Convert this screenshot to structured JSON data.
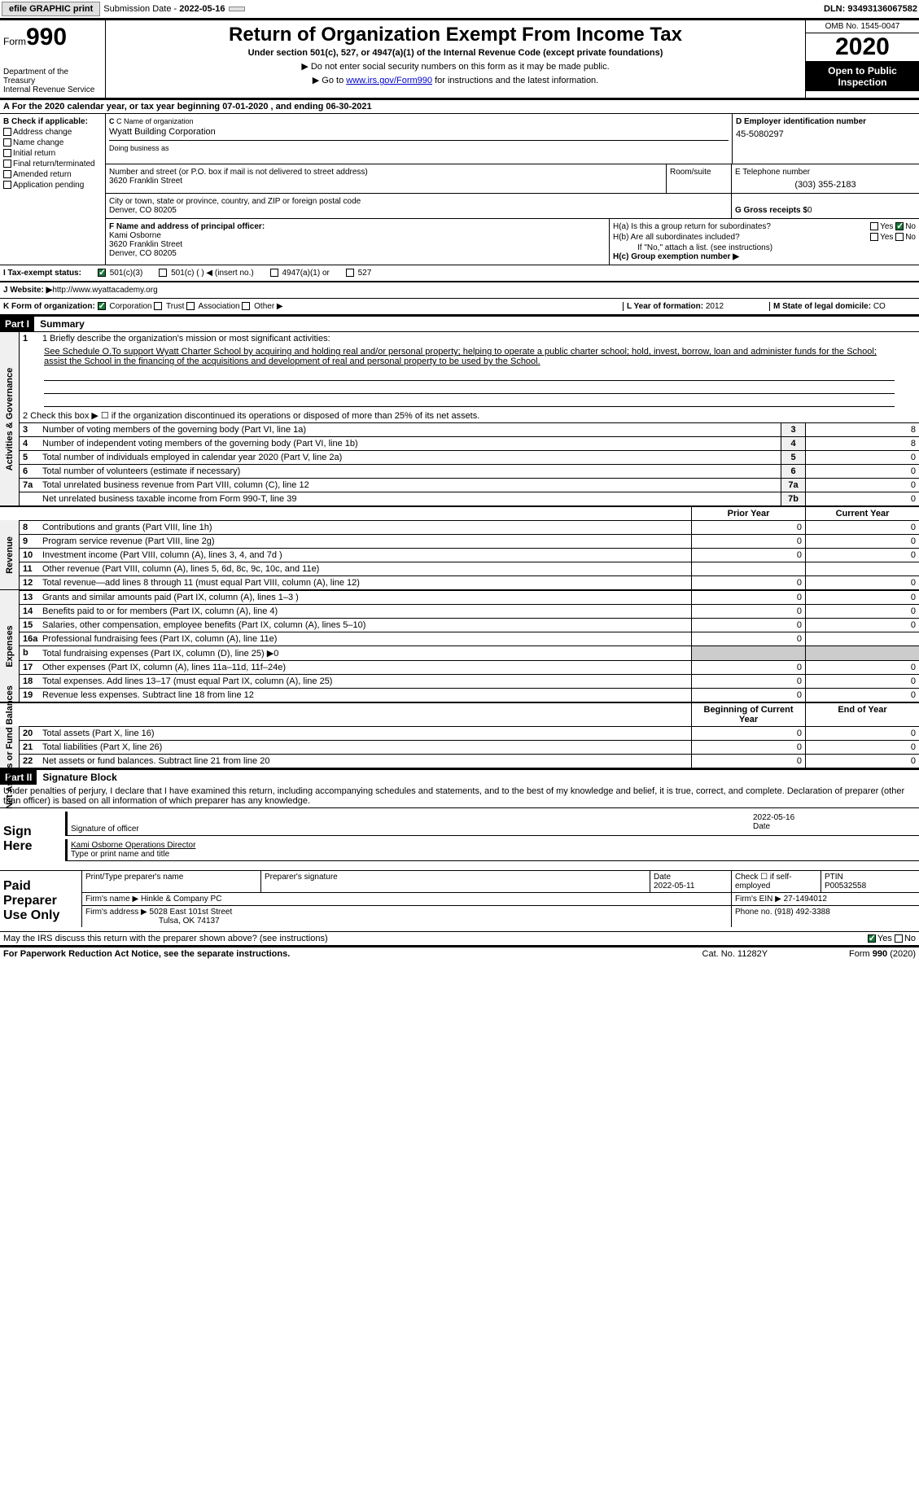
{
  "topbar": {
    "efile": "efile GRAPHIC print",
    "submission_label": "Submission Date - ",
    "submission_date": "2022-05-16",
    "dln_label": "DLN: ",
    "dln": "93493136067582"
  },
  "header": {
    "form_label": "Form",
    "form_num": "990",
    "dept": "Department of the Treasury\nInternal Revenue Service",
    "title": "Return of Organization Exempt From Income Tax",
    "subtitle": "Under section 501(c), 527, or 4947(a)(1) of the Internal Revenue Code (except private foundations)",
    "note1": "▶ Do not enter social security numbers on this form as it may be made public.",
    "note2_pre": "▶ Go to ",
    "note2_link": "www.irs.gov/Form990",
    "note2_post": " for instructions and the latest information.",
    "omb": "OMB No. 1545-0047",
    "year": "2020",
    "open": "Open to Public Inspection"
  },
  "row_a": "A For the 2020 calendar year, or tax year beginning 07-01-2020    , and ending 06-30-2021",
  "col_b": {
    "label": "B Check if applicable:",
    "addr": "Address change",
    "name": "Name change",
    "init": "Initial return",
    "final": "Final return/terminated",
    "amend": "Amended return",
    "app": "Application pending"
  },
  "col_c": {
    "name_label": "C Name of organization",
    "name": "Wyatt Building Corporation",
    "dba_label": "Doing business as",
    "street_label": "Number and street (or P.O. box if mail is not delivered to street address)",
    "street": "3620 Franklin Street",
    "room_label": "Room/suite",
    "city_label": "City or town, state or province, country, and ZIP or foreign postal code",
    "city": "Denver, CO  80205"
  },
  "col_d": {
    "label": "D Employer identification number",
    "val": "45-5080297"
  },
  "col_e": {
    "label": "E Telephone number",
    "val": "(303) 355-2183"
  },
  "col_g": {
    "label": "G Gross receipts $ ",
    "val": "0"
  },
  "col_f": {
    "label": "F  Name and address of principal officer:",
    "name": "Kami Osborne",
    "addr1": "3620 Franklin Street",
    "addr2": "Denver, CO  80205"
  },
  "col_h": {
    "ha": "H(a)  Is this a group return for subordinates?",
    "hb": "H(b)  Are all subordinates included?",
    "hb_note": "If \"No,\" attach a list. (see instructions)",
    "hc": "H(c)  Group exemption number ▶",
    "yes": "Yes",
    "no": "No"
  },
  "row_i": {
    "label": "I   Tax-exempt status:",
    "c3": "501(c)(3)",
    "c": "501(c) (  ) ◀ (insert no.)",
    "a1": "4947(a)(1) or",
    "s527": "527"
  },
  "row_j": {
    "label": "J   Website: ▶ ",
    "val": "http://www.wyattacademy.org"
  },
  "row_k": {
    "label": "K Form of organization:",
    "corp": "Corporation",
    "trust": "Trust",
    "assoc": "Association",
    "other": "Other ▶",
    "l_label": "L Year of formation: ",
    "l_val": "2012",
    "m_label": "M State of legal domicile: ",
    "m_val": "CO"
  },
  "part1": {
    "hdr": "Part I",
    "title": "Summary",
    "vtabs": [
      "Activities & Governance",
      "Revenue",
      "Expenses",
      "Net Assets or Fund Balances"
    ],
    "line1_label": "1  Briefly describe the organization's mission or most significant activities:",
    "line1_text": "See Schedule O.To support Wyatt Charter School by acquiring and holding real and/or personal property; helping to operate a public charter school; hold, invest, borrow, loan and administer funds for the School; assist the School in the financing of the acquisitions and development of real and personal property to be used by the School.",
    "line2": "2   Check this box ▶ ☐  if the organization discontinued its operations or disposed of more than 25% of its net assets.",
    "lines_gov": [
      {
        "n": "3",
        "t": "Number of voting members of the governing body (Part VI, line 1a)",
        "c": "3",
        "v": "8"
      },
      {
        "n": "4",
        "t": "Number of independent voting members of the governing body (Part VI, line 1b)",
        "c": "4",
        "v": "8"
      },
      {
        "n": "5",
        "t": "Total number of individuals employed in calendar year 2020 (Part V, line 2a)",
        "c": "5",
        "v": "0"
      },
      {
        "n": "6",
        "t": "Total number of volunteers (estimate if necessary)",
        "c": "6",
        "v": "0"
      },
      {
        "n": "7a",
        "t": "Total unrelated business revenue from Part VIII, column (C), line 12",
        "c": "7a",
        "v": "0"
      },
      {
        "n": "",
        "t": "Net unrelated business taxable income from Form 990-T, line 39",
        "c": "7b",
        "v": "0"
      }
    ],
    "hdr_prior": "Prior Year",
    "hdr_curr": "Current Year",
    "lines_rev": [
      {
        "n": "8",
        "t": "Contributions and grants (Part VIII, line 1h)",
        "p": "0",
        "c": "0"
      },
      {
        "n": "9",
        "t": "Program service revenue (Part VIII, line 2g)",
        "p": "0",
        "c": "0"
      },
      {
        "n": "10",
        "t": "Investment income (Part VIII, column (A), lines 3, 4, and 7d )",
        "p": "0",
        "c": "0"
      },
      {
        "n": "11",
        "t": "Other revenue (Part VIII, column (A), lines 5, 6d, 8c, 9c, 10c, and 11e)",
        "p": "",
        "c": ""
      },
      {
        "n": "12",
        "t": "Total revenue—add lines 8 through 11 (must equal Part VIII, column (A), line 12)",
        "p": "0",
        "c": "0"
      }
    ],
    "lines_exp": [
      {
        "n": "13",
        "t": "Grants and similar amounts paid (Part IX, column (A), lines 1–3 )",
        "p": "0",
        "c": "0"
      },
      {
        "n": "14",
        "t": "Benefits paid to or for members (Part IX, column (A), line 4)",
        "p": "0",
        "c": "0"
      },
      {
        "n": "15",
        "t": "Salaries, other compensation, employee benefits (Part IX, column (A), lines 5–10)",
        "p": "0",
        "c": "0"
      },
      {
        "n": "16a",
        "t": "Professional fundraising fees (Part IX, column (A), line 11e)",
        "p": "0",
        "c": ""
      },
      {
        "n": "b",
        "t": "Total fundraising expenses (Part IX, column (D), line 25) ▶0",
        "p": "",
        "c": "",
        "nobox": true
      },
      {
        "n": "17",
        "t": "Other expenses (Part IX, column (A), lines 11a–11d, 11f–24e)",
        "p": "0",
        "c": "0"
      },
      {
        "n": "18",
        "t": "Total expenses. Add lines 13–17 (must equal Part IX, column (A), line 25)",
        "p": "0",
        "c": "0"
      },
      {
        "n": "19",
        "t": "Revenue less expenses. Subtract line 18 from line 12",
        "p": "0",
        "c": "0"
      }
    ],
    "hdr_begin": "Beginning of Current Year",
    "hdr_end": "End of Year",
    "lines_net": [
      {
        "n": "20",
        "t": "Total assets (Part X, line 16)",
        "p": "0",
        "c": "0"
      },
      {
        "n": "21",
        "t": "Total liabilities (Part X, line 26)",
        "p": "0",
        "c": "0"
      },
      {
        "n": "22",
        "t": "Net assets or fund balances. Subtract line 21 from line 20",
        "p": "0",
        "c": "0"
      }
    ]
  },
  "part2": {
    "hdr": "Part II",
    "title": "Signature Block",
    "decl": "Under penalties of perjury, I declare that I have examined this return, including accompanying schedules and statements, and to the best of my knowledge and belief, it is true, correct, and complete. Declaration of preparer (other than officer) is based on all information of which preparer has any knowledge."
  },
  "sign": {
    "lbl": "Sign Here",
    "sig_lbl": "Signature of officer",
    "date": "2022-05-16",
    "date_lbl": "Date",
    "name": "Kami Osborne  Operations Director",
    "name_lbl": "Type or print name and title"
  },
  "prep": {
    "lbl": "Paid Preparer Use Only",
    "print_lbl": "Print/Type preparer's name",
    "sig_lbl": "Preparer's signature",
    "date_lbl": "Date",
    "date": "2022-05-11",
    "check_lbl": "Check ☐ if self-employed",
    "ptin_lbl": "PTIN",
    "ptin": "P00532558",
    "firm_name_lbl": "Firm's name    ▶ ",
    "firm_name": "Hinkle & Company PC",
    "firm_ein_lbl": "Firm's EIN ▶ ",
    "firm_ein": "27-1494012",
    "firm_addr_lbl": "Firm's address ▶ ",
    "firm_addr1": "5028 East 101st Street",
    "firm_addr2": "Tulsa, OK  74137",
    "phone_lbl": "Phone no. ",
    "phone": "(918) 492-3388"
  },
  "discuss": {
    "txt": "May the IRS discuss this return with the preparer shown above? (see instructions)",
    "yes": "Yes",
    "no": "No"
  },
  "footer": {
    "left": "For Paperwork Reduction Act Notice, see the separate instructions.",
    "mid": "Cat. No. 11282Y",
    "right_pre": "Form ",
    "right_form": "990",
    "right_post": " (2020)"
  }
}
